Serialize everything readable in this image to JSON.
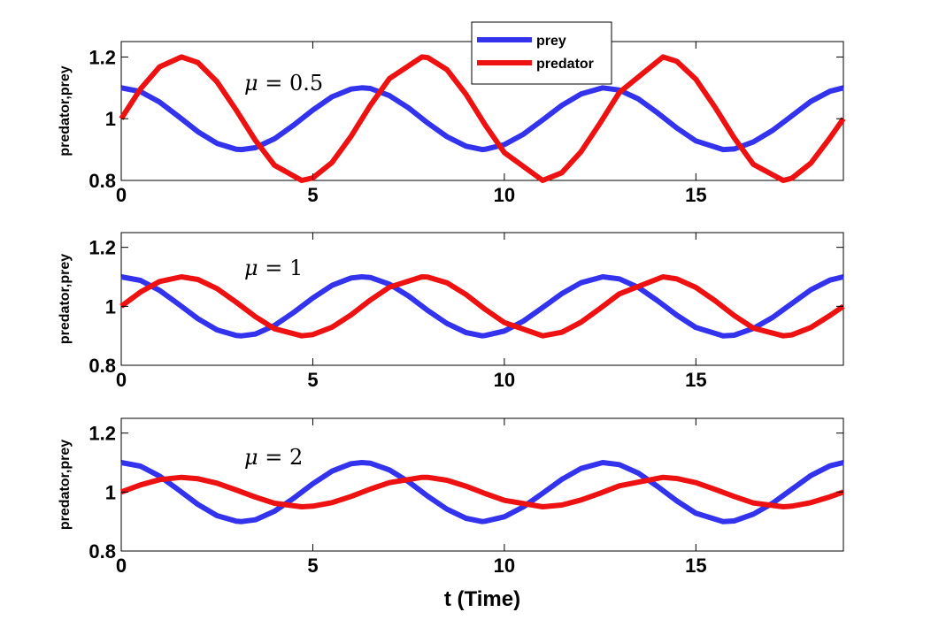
{
  "colors": {
    "prey": "#3333ee",
    "predator": "#ee1111"
  },
  "chart_data": [
    {
      "type": "line",
      "annotation": {
        "symbol": "μ",
        "value": "0.5"
      },
      "ylabel": "predator,prey",
      "xlabel": "",
      "xlim": [
        0,
        18.85
      ],
      "ylim": [
        0.8,
        1.25
      ],
      "xticks": [
        "0",
        "5",
        "10",
        "15"
      ],
      "yticks": [
        "0.8",
        "1",
        "1.2"
      ],
      "legend": {
        "placement": "top-center",
        "entries": [
          "prey",
          "predator"
        ]
      },
      "series": [
        {
          "name": "prey",
          "color_key": "prey",
          "x": [
            0,
            0.5,
            1,
            1.5,
            2,
            2.5,
            3,
            3.14,
            3.5,
            4,
            4.5,
            5,
            5.5,
            6,
            6.28,
            6.5,
            7,
            7.5,
            8,
            8.5,
            9,
            9.42,
            9.5,
            10,
            10.5,
            11,
            11.5,
            12,
            12.57,
            13,
            13.5,
            14,
            14.5,
            15,
            15.71,
            16,
            16.5,
            17,
            17.5,
            18,
            18.5,
            18.85
          ],
          "y": [
            1.1,
            1.088,
            1.054,
            1.007,
            0.958,
            0.92,
            0.901,
            0.9,
            0.906,
            0.935,
            0.979,
            1.028,
            1.071,
            1.096,
            1.1,
            1.098,
            1.075,
            1.035,
            0.986,
            0.942,
            0.911,
            0.9,
            0.901,
            0.916,
            0.95,
            0.996,
            1.043,
            1.08,
            1.1,
            1.093,
            1.064,
            1.019,
            0.97,
            0.928,
            0.9,
            0.902,
            0.925,
            0.962,
            1.009,
            1.056,
            1.089,
            1.1
          ]
        },
        {
          "name": "predator",
          "color_key": "predator",
          "x": [
            0,
            0.5,
            1,
            1.57,
            2,
            2.5,
            3,
            3.5,
            4,
            4.71,
            5,
            5.5,
            6,
            6.5,
            7,
            7.85,
            8,
            8.5,
            9,
            9.5,
            10,
            11,
            11.5,
            12,
            12.5,
            13,
            14.14,
            14.5,
            15,
            15.5,
            16,
            16.5,
            17.28,
            17.5,
            18,
            18.5,
            18.85
          ],
          "y": [
            1.0,
            1.096,
            1.168,
            1.2,
            1.182,
            1.12,
            1.028,
            0.93,
            0.849,
            0.8,
            0.808,
            0.858,
            0.943,
            1.043,
            1.13,
            1.2,
            1.198,
            1.159,
            1.079,
            0.98,
            0.89,
            0.8,
            0.825,
            0.893,
            0.986,
            1.085,
            1.2,
            1.186,
            1.128,
            1.037,
            0.938,
            0.852,
            0.8,
            0.807,
            0.856,
            0.938,
            1.0
          ]
        }
      ]
    },
    {
      "type": "line",
      "annotation": {
        "symbol": "μ",
        "value": "1"
      },
      "ylabel": "predator,prey",
      "xlabel": "",
      "xlim": [
        0,
        18.85
      ],
      "ylim": [
        0.8,
        1.25
      ],
      "xticks": [
        "0",
        "5",
        "10",
        "15"
      ],
      "yticks": [
        "0.8",
        "1",
        "1.2"
      ],
      "series": [
        {
          "name": "prey",
          "color_key": "prey",
          "x": [
            0,
            0.5,
            1,
            1.5,
            2,
            2.5,
            3,
            3.14,
            3.5,
            4,
            4.5,
            5,
            5.5,
            6,
            6.28,
            6.5,
            7,
            7.5,
            8,
            8.5,
            9,
            9.42,
            9.5,
            10,
            10.5,
            11,
            11.5,
            12,
            12.57,
            13,
            13.5,
            14,
            14.5,
            15,
            15.71,
            16,
            16.5,
            17,
            17.5,
            18,
            18.5,
            18.85
          ],
          "y": [
            1.1,
            1.088,
            1.054,
            1.007,
            0.958,
            0.92,
            0.901,
            0.9,
            0.906,
            0.935,
            0.979,
            1.028,
            1.071,
            1.096,
            1.1,
            1.098,
            1.075,
            1.035,
            0.986,
            0.942,
            0.911,
            0.9,
            0.901,
            0.916,
            0.95,
            0.996,
            1.043,
            1.08,
            1.1,
            1.093,
            1.064,
            1.019,
            0.97,
            0.928,
            0.9,
            0.902,
            0.925,
            0.962,
            1.009,
            1.056,
            1.089,
            1.1
          ]
        },
        {
          "name": "predator",
          "color_key": "predator",
          "x": [
            0,
            0.5,
            1,
            1.57,
            2,
            2.5,
            3,
            3.5,
            4,
            4.71,
            5,
            5.5,
            6,
            6.5,
            7,
            7.85,
            8,
            8.5,
            9,
            9.5,
            10,
            11,
            11.5,
            12,
            12.5,
            13,
            14.14,
            14.5,
            15,
            15.5,
            16,
            16.5,
            17.28,
            17.5,
            18,
            18.5,
            18.85
          ],
          "y": [
            1.0,
            1.048,
            1.084,
            1.1,
            1.091,
            1.06,
            1.014,
            0.965,
            0.924,
            0.9,
            0.904,
            0.929,
            0.971,
            1.021,
            1.065,
            1.1,
            1.099,
            1.08,
            1.04,
            0.99,
            0.945,
            0.9,
            0.912,
            0.946,
            0.993,
            1.042,
            1.1,
            1.093,
            1.064,
            1.019,
            0.969,
            0.926,
            0.9,
            0.903,
            0.928,
            0.969,
            1.0
          ]
        }
      ]
    },
    {
      "type": "line",
      "annotation": {
        "symbol": "μ",
        "value": "2"
      },
      "ylabel": "predator,prey",
      "xlabel": "t (Time)",
      "xlim": [
        0,
        18.85
      ],
      "ylim": [
        0.8,
        1.25
      ],
      "xticks": [
        "0",
        "5",
        "10",
        "15"
      ],
      "yticks": [
        "0.8",
        "1",
        "1.2"
      ],
      "series": [
        {
          "name": "prey",
          "color_key": "prey",
          "x": [
            0,
            0.5,
            1,
            1.5,
            2,
            2.5,
            3,
            3.14,
            3.5,
            4,
            4.5,
            5,
            5.5,
            6,
            6.28,
            6.5,
            7,
            7.5,
            8,
            8.5,
            9,
            9.42,
            9.5,
            10,
            10.5,
            11,
            11.5,
            12,
            12.57,
            13,
            13.5,
            14,
            14.5,
            15,
            15.71,
            16,
            16.5,
            17,
            17.5,
            18,
            18.5,
            18.85
          ],
          "y": [
            1.1,
            1.088,
            1.054,
            1.007,
            0.958,
            0.92,
            0.901,
            0.9,
            0.906,
            0.935,
            0.979,
            1.028,
            1.071,
            1.096,
            1.1,
            1.098,
            1.075,
            1.035,
            0.986,
            0.942,
            0.911,
            0.9,
            0.901,
            0.916,
            0.95,
            0.996,
            1.043,
            1.08,
            1.1,
            1.093,
            1.064,
            1.019,
            0.97,
            0.928,
            0.9,
            0.902,
            0.925,
            0.962,
            1.009,
            1.056,
            1.089,
            1.1
          ]
        },
        {
          "name": "predator",
          "color_key": "predator",
          "x": [
            0,
            0.5,
            1,
            1.57,
            2,
            2.5,
            3,
            3.5,
            4,
            4.71,
            5,
            5.5,
            6,
            6.5,
            7,
            7.85,
            8,
            8.5,
            9,
            9.5,
            10,
            11,
            11.5,
            12,
            12.5,
            13,
            14.14,
            14.5,
            15,
            15.5,
            16,
            16.5,
            17.28,
            17.5,
            18,
            18.5,
            18.85
          ],
          "y": [
            1.0,
            1.024,
            1.042,
            1.05,
            1.045,
            1.03,
            1.007,
            0.983,
            0.962,
            0.95,
            0.952,
            0.964,
            0.985,
            1.01,
            1.032,
            1.05,
            1.05,
            1.04,
            1.02,
            0.995,
            0.972,
            0.95,
            0.956,
            0.973,
            0.996,
            1.021,
            1.05,
            1.046,
            1.032,
            1.009,
            0.985,
            0.963,
            0.95,
            0.952,
            0.964,
            0.984,
            1.0
          ]
        }
      ]
    }
  ]
}
